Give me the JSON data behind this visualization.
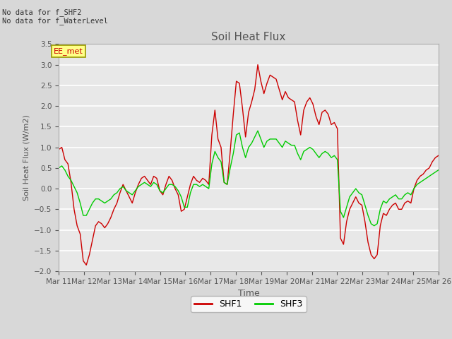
{
  "title": "Soil Heat Flux",
  "ylabel": "Soil Heat Flux (W/m2)",
  "xlabel": "Time",
  "ylim": [
    -2.0,
    3.5
  ],
  "annotation_text": "No data for f_SHF2\nNo data for f_WaterLevel",
  "box_label": "EE_met",
  "xtick_labels": [
    "Mar 11",
    "Mar 12",
    "Mar 13",
    "Mar 14",
    "Mar 15",
    "Mar 16",
    "Mar 17",
    "Mar 18",
    "Mar 19",
    "Mar 20",
    "Mar 21",
    "Mar 22",
    "Mar 23",
    "Mar 24",
    "Mar 25",
    "Mar 26"
  ],
  "shf1_color": "#cc0000",
  "shf3_color": "#00cc00",
  "background_color": "#d8d8d8",
  "plot_bg_color": "#e8e8e8",
  "grid_color": "#ffffff",
  "title_color": "#555555",
  "label_color": "#555555",
  "shf1_data": [
    0.95,
    1.0,
    0.7,
    0.6,
    0.15,
    -0.5,
    -0.9,
    -1.1,
    -1.75,
    -1.85,
    -1.6,
    -1.25,
    -0.9,
    -0.8,
    -0.85,
    -0.95,
    -0.85,
    -0.7,
    -0.5,
    -0.35,
    -0.1,
    0.1,
    -0.05,
    -0.2,
    -0.35,
    -0.1,
    0.1,
    0.25,
    0.3,
    0.2,
    0.1,
    0.3,
    0.25,
    -0.05,
    -0.15,
    0.1,
    0.3,
    0.2,
    0.0,
    -0.15,
    -0.55,
    -0.5,
    -0.2,
    0.1,
    0.3,
    0.2,
    0.15,
    0.25,
    0.2,
    0.1,
    1.3,
    1.9,
    1.2,
    1.0,
    0.15,
    0.1,
    0.9,
    1.8,
    2.6,
    2.55,
    1.95,
    1.25,
    1.85,
    2.1,
    2.4,
    3.0,
    2.6,
    2.3,
    2.55,
    2.75,
    2.7,
    2.65,
    2.4,
    2.15,
    2.35,
    2.2,
    2.15,
    2.1,
    1.65,
    1.3,
    1.9,
    2.1,
    2.2,
    2.05,
    1.75,
    1.55,
    1.85,
    1.9,
    1.8,
    1.55,
    1.6,
    1.45,
    -1.2,
    -1.35,
    -0.8,
    -0.5,
    -0.35,
    -0.2,
    -0.35,
    -0.4,
    -0.8,
    -1.3,
    -1.6,
    -1.7,
    -1.6,
    -0.9,
    -0.6,
    -0.65,
    -0.5,
    -0.4,
    -0.35,
    -0.5,
    -0.5,
    -0.35,
    -0.3,
    -0.35,
    0.0,
    0.2,
    0.3,
    0.35,
    0.45,
    0.5,
    0.65,
    0.75,
    0.8
  ],
  "shf3_data": [
    0.5,
    0.55,
    0.45,
    0.3,
    0.2,
    0.05,
    -0.1,
    -0.35,
    -0.65,
    -0.65,
    -0.5,
    -0.35,
    -0.25,
    -0.25,
    -0.3,
    -0.35,
    -0.3,
    -0.25,
    -0.15,
    -0.1,
    0.0,
    0.05,
    -0.05,
    -0.1,
    -0.15,
    -0.05,
    0.05,
    0.1,
    0.15,
    0.1,
    0.05,
    0.15,
    0.1,
    -0.05,
    -0.1,
    0.0,
    0.1,
    0.1,
    0.05,
    -0.05,
    -0.2,
    -0.45,
    -0.45,
    -0.1,
    0.1,
    0.1,
    0.05,
    0.1,
    0.05,
    0.0,
    0.6,
    0.9,
    0.75,
    0.65,
    0.15,
    0.1,
    0.5,
    0.85,
    1.3,
    1.35,
    1.0,
    0.75,
    1.0,
    1.1,
    1.25,
    1.4,
    1.2,
    1.0,
    1.15,
    1.2,
    1.2,
    1.2,
    1.1,
    1.0,
    1.15,
    1.1,
    1.05,
    1.05,
    0.85,
    0.7,
    0.9,
    0.95,
    1.0,
    0.95,
    0.85,
    0.75,
    0.85,
    0.9,
    0.85,
    0.75,
    0.8,
    0.7,
    -0.55,
    -0.7,
    -0.45,
    -0.2,
    -0.1,
    0.0,
    -0.1,
    -0.15,
    -0.4,
    -0.65,
    -0.85,
    -0.9,
    -0.85,
    -0.5,
    -0.3,
    -0.35,
    -0.25,
    -0.2,
    -0.15,
    -0.25,
    -0.25,
    -0.15,
    -0.1,
    -0.15,
    0.0,
    0.1,
    0.15,
    0.2,
    0.25,
    0.3,
    0.35,
    0.4,
    0.45
  ]
}
